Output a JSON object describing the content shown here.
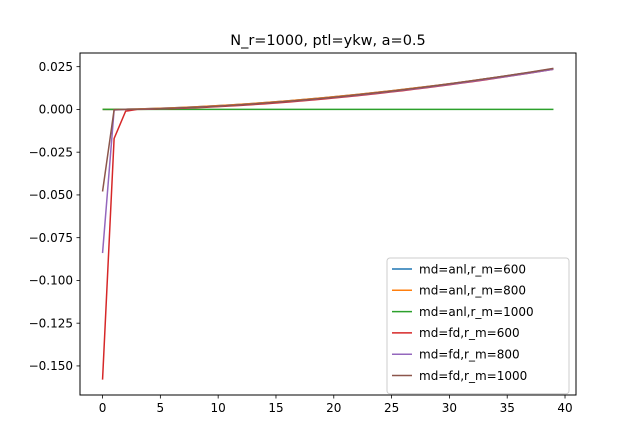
{
  "chart_data": {
    "type": "line",
    "title": "N_r=1000, ptl=ykw, a=0.5",
    "xlabel": "",
    "ylabel": "",
    "xlim": [
      -1.95,
      40.95
    ],
    "ylim": [
      -0.167,
      0.033
    ],
    "x_ticks": [
      0,
      5,
      10,
      15,
      20,
      25,
      30,
      35,
      40
    ],
    "y_ticks": [
      0.025,
      0.0,
      -0.025,
      -0.05,
      -0.075,
      -0.1,
      -0.125,
      -0.15
    ],
    "y_tick_labels": [
      "0.025",
      "0.000",
      "−0.025",
      "−0.050",
      "−0.075",
      "−0.100",
      "−0.125",
      "−0.150"
    ],
    "grid": false,
    "legend_position": "lower-right",
    "series": [
      {
        "name": "md=anl,r_m=600",
        "color": "#1f77b4",
        "kind": "smooth",
        "base": 0,
        "end": 0.0238
      },
      {
        "name": "md=anl,r_m=800",
        "color": "#ff7f0e",
        "kind": "smooth",
        "base": 0,
        "end": 0.0238
      },
      {
        "name": "md=anl,r_m=1000",
        "color": "#2ca02c",
        "kind": "zero"
      },
      {
        "name": "md=fd,r_m=600",
        "color": "#d62728",
        "kind": "smooth",
        "base": 2,
        "end": 0.0235,
        "head": [
          [
            0,
            -0.158
          ],
          [
            1,
            -0.017
          ],
          [
            2,
            -0.001
          ]
        ]
      },
      {
        "name": "md=fd,r_m=800",
        "color": "#9467bd",
        "kind": "smooth",
        "base": 1,
        "end": 0.0235,
        "head": [
          [
            0,
            -0.084
          ],
          [
            1,
            -0.0003
          ]
        ]
      },
      {
        "name": "md=fd,r_m=1000",
        "color": "#8c564b",
        "kind": "smooth",
        "base": 1,
        "end": 0.024,
        "head": [
          [
            0,
            -0.048
          ],
          [
            1,
            -0.0002
          ]
        ]
      }
    ]
  }
}
